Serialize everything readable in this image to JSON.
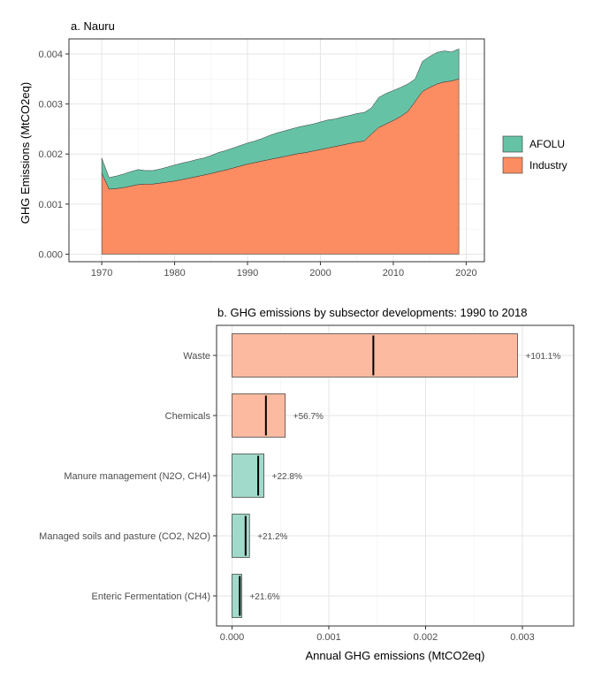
{
  "chart_data": [
    {
      "type": "area",
      "title": "a. Nauru",
      "xlabel": "",
      "ylabel": "GHG Emissions (MtCO2eq)",
      "xlim": [
        1970,
        2019
      ],
      "ylim": [
        0,
        0.0041
      ],
      "x_ticks": [
        1970,
        1980,
        1990,
        2000,
        2010,
        2020
      ],
      "y_ticks": [
        0,
        0.001,
        0.002,
        0.003,
        0.004
      ],
      "y_tick_labels": [
        "0.000",
        "0.001",
        "0.002",
        "0.003",
        "0.004"
      ],
      "legend_position": "right",
      "stacked": true,
      "x": [
        1970,
        1971,
        1972,
        1973,
        1974,
        1975,
        1976,
        1977,
        1978,
        1979,
        1980,
        1981,
        1982,
        1983,
        1984,
        1985,
        1986,
        1987,
        1988,
        1989,
        1990,
        1991,
        1992,
        1993,
        1994,
        1995,
        1996,
        1997,
        1998,
        1999,
        2000,
        2001,
        2002,
        2003,
        2004,
        2005,
        2006,
        2007,
        2008,
        2009,
        2010,
        2011,
        2012,
        2013,
        2014,
        2015,
        2016,
        2017,
        2018,
        2019
      ],
      "series": [
        {
          "name": "Industry",
          "color": "#fc8d62",
          "values": [
            0.00162,
            0.0013,
            0.00131,
            0.00133,
            0.00136,
            0.00139,
            0.0014,
            0.0014,
            0.00142,
            0.00144,
            0.00146,
            0.00149,
            0.00152,
            0.00155,
            0.00158,
            0.00161,
            0.00165,
            0.00168,
            0.00172,
            0.00176,
            0.0018,
            0.00183,
            0.00186,
            0.00189,
            0.00192,
            0.00195,
            0.00198,
            0.00201,
            0.00203,
            0.00206,
            0.00209,
            0.00212,
            0.00215,
            0.00218,
            0.00221,
            0.00224,
            0.00226,
            0.0024,
            0.00253,
            0.0026,
            0.00267,
            0.00275,
            0.00285,
            0.00305,
            0.00325,
            0.00333,
            0.0034,
            0.00344,
            0.00346,
            0.0035
          ]
        },
        {
          "name": "AFOLU",
          "color": "#66c2a5",
          "values": [
            0.0003,
            0.00023,
            0.00025,
            0.00027,
            0.00029,
            0.0003,
            0.00027,
            0.00027,
            0.00028,
            0.0003,
            0.00032,
            0.00033,
            0.00033,
            0.00034,
            0.00034,
            0.00036,
            0.00038,
            0.00039,
            0.0004,
            0.00041,
            0.00042,
            0.00043,
            0.00045,
            0.00048,
            0.0005,
            0.00051,
            0.00052,
            0.00053,
            0.00054,
            0.00054,
            0.00055,
            0.00056,
            0.00055,
            0.00056,
            0.00056,
            0.00057,
            0.00057,
            0.00052,
            0.0006,
            0.00061,
            0.0006,
            0.00058,
            0.00055,
            0.00045,
            0.0006,
            0.00062,
            0.00063,
            0.00062,
            0.00058,
            0.0006
          ]
        }
      ]
    },
    {
      "type": "bar",
      "orientation": "horizontal",
      "title": "b. GHG emissions by subsector developments: 1990 to 2018",
      "xlabel": "Annual GHG emissions (MtCO2eq)",
      "ylabel": "",
      "xlim": [
        0,
        0.00335
      ],
      "x_ticks": [
        0,
        0.001,
        0.002,
        0.003
      ],
      "x_tick_labels": [
        "0.000",
        "0.001",
        "0.002",
        "0.003"
      ],
      "categories": [
        "Waste",
        "Chemicals",
        "Manure management (N2O, CH4)",
        "Managed soils and pasture (CO2, N2O)",
        "Enteric Fermentation (CH4)"
      ],
      "values_2018": [
        0.00295,
        0.00055,
        0.00033,
        0.00018,
        0.0001
      ],
      "values_1990": [
        0.00146,
        0.00035,
        0.00027,
        0.00014,
        8e-05
      ],
      "change_labels": [
        "+101.1%",
        "+56.7%",
        "+22.8%",
        "+21.2%",
        "+21.6%"
      ],
      "colors": [
        "#fcbba1",
        "#fcbba1",
        "#a1dacb",
        "#a1dacb",
        "#a1dacb"
      ]
    }
  ]
}
